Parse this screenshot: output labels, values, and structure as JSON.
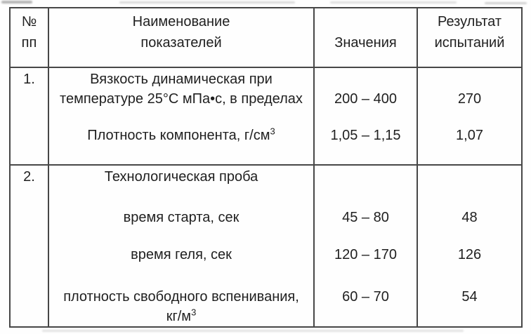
{
  "document": {
    "colors": {
      "border": "#474747",
      "text": "#1f1f1f",
      "background": "#fefefe"
    },
    "header": {
      "no_line1": "№",
      "no_line2": "пп",
      "name_line1": "Наименование",
      "name_line2": "показателей",
      "value_label": "Значения",
      "result_line1": "Результат",
      "result_line2": "испытаний"
    },
    "rows": [
      {
        "no": "1.",
        "items": [
          {
            "name_line1": "Вязкость динамическая при",
            "name_line2": "температуре 25°С мПа•с, в пределах",
            "value": "200 – 400",
            "result": "270"
          },
          {
            "name": "Плотность компонента, г/см",
            "name_sup": "3",
            "value": "1,05 – 1,15",
            "result": "1,07"
          }
        ]
      },
      {
        "no": "2.",
        "title": "Технологическая проба",
        "items": [
          {
            "name": "время старта, сек",
            "value": "45 – 80",
            "result": "48"
          },
          {
            "name": "время геля, сек",
            "value": "120 – 170",
            "result": "126"
          },
          {
            "name": "плотность свободного вспенивания,",
            "name_line2": "кг/м",
            "name_sup": "3",
            "value": "60 – 70",
            "result": "54"
          }
        ]
      }
    ]
  }
}
